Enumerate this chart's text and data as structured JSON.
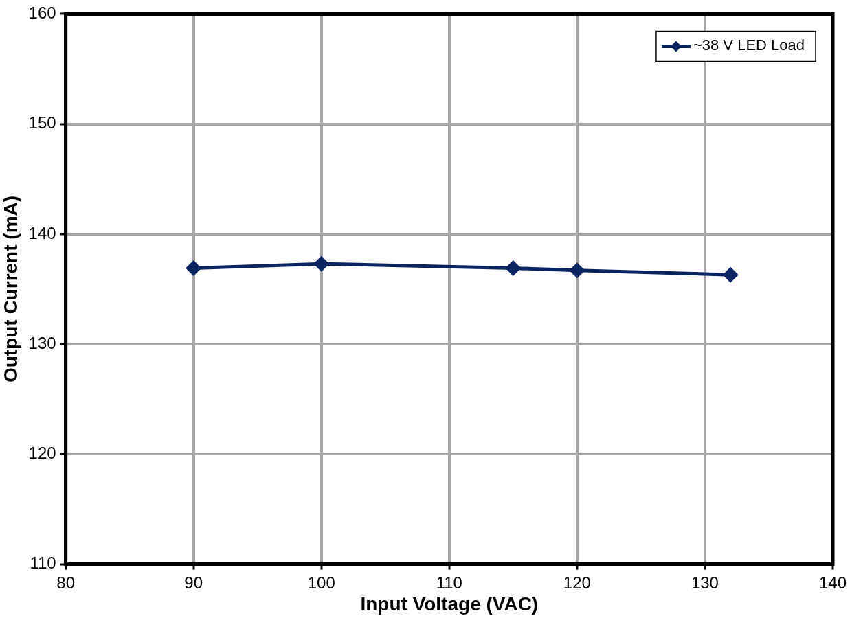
{
  "chart_data": {
    "type": "line",
    "xlabel": "Input Voltage (VAC)",
    "ylabel": "Output Current (mA)",
    "x": [
      90,
      100,
      115,
      120,
      132
    ],
    "series": [
      {
        "name": "~38 V LED Load",
        "color": "#0a2461",
        "values": [
          136.9,
          137.3,
          136.9,
          136.7,
          136.3
        ]
      }
    ],
    "xlim": [
      80,
      140
    ],
    "xticks": [
      80,
      90,
      100,
      110,
      120,
      130,
      140
    ],
    "ylim": [
      110,
      160
    ],
    "yticks": [
      110,
      120,
      130,
      140,
      150,
      160
    ],
    "grid": true,
    "legend": "top right",
    "marker": "diamond",
    "line_style": "solid"
  }
}
